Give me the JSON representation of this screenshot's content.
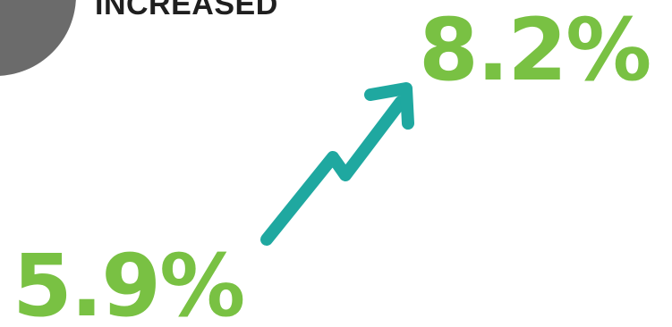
{
  "heading": "INCREASED",
  "new_value": "8.2%",
  "old_value": "5.9%",
  "colors": {
    "value_green": "#79c143",
    "arrow_teal": "#1fa8a0",
    "circle_gray": "#6b6b6b",
    "heading_text": "#1f1f1f"
  },
  "icons": [
    "trend-up-arrow-icon"
  ]
}
